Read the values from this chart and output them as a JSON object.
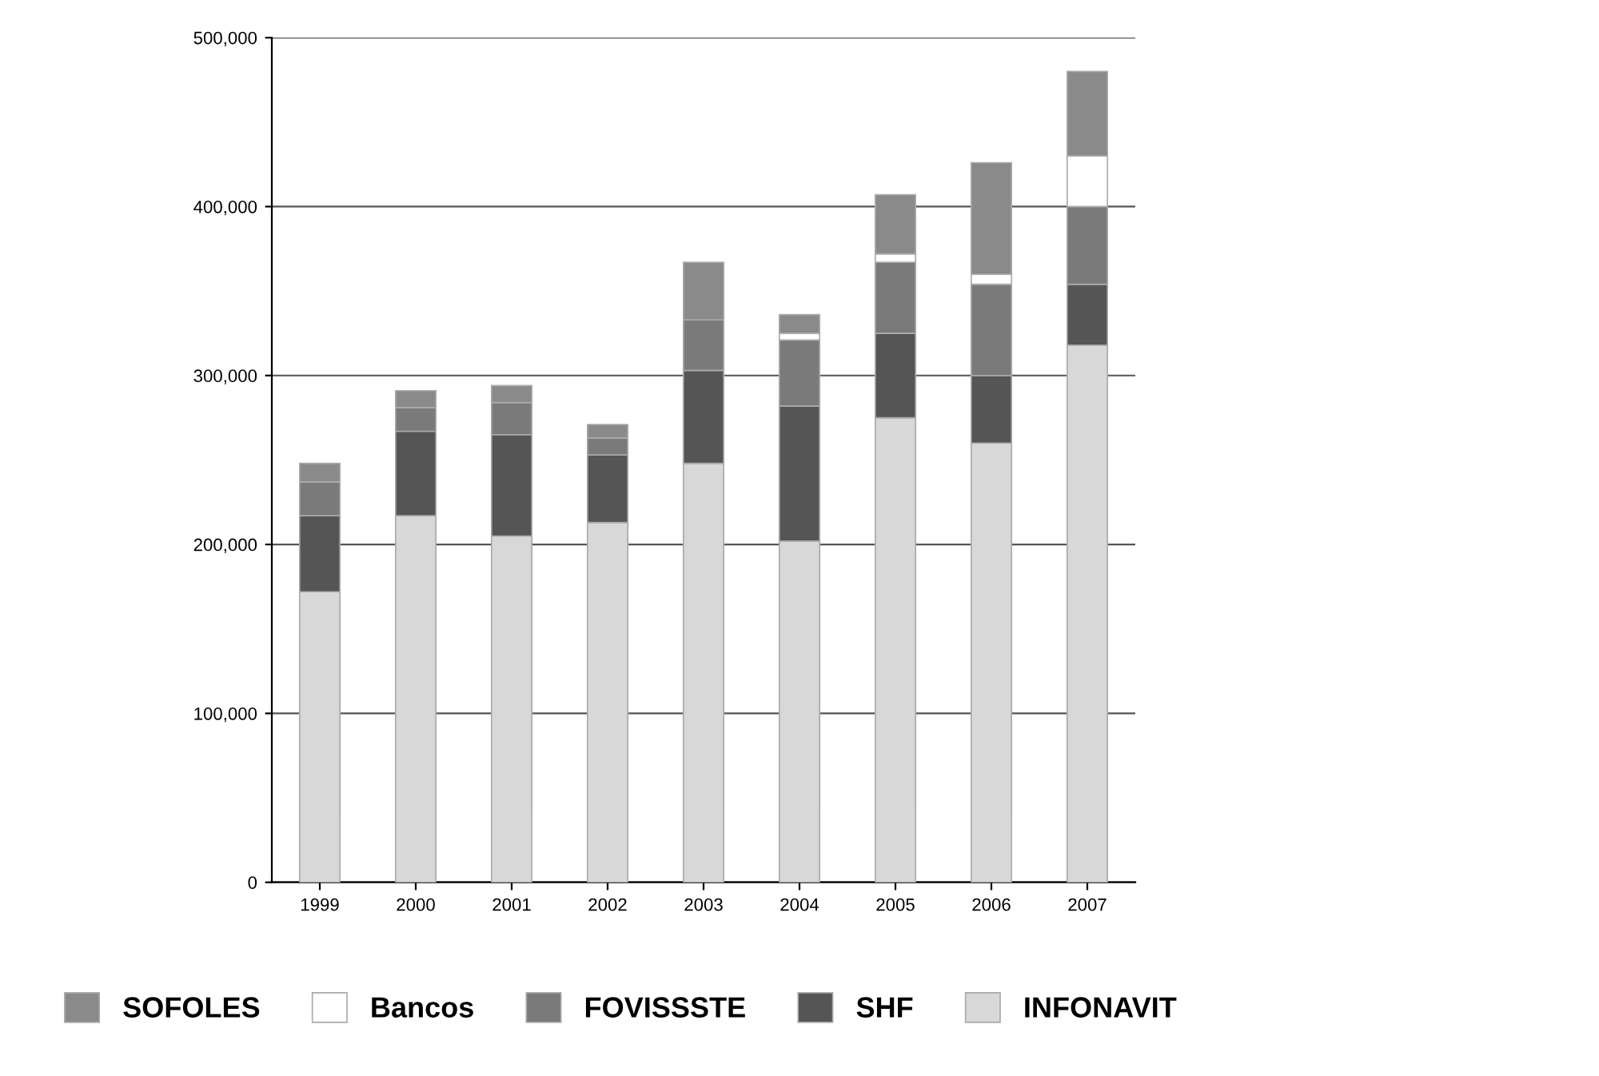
{
  "chart_data": {
    "type": "bar",
    "stacked": true,
    "categories": [
      "1999",
      "2000",
      "2001",
      "2002",
      "2003",
      "2004",
      "2005",
      "2006",
      "2007"
    ],
    "series": [
      {
        "name": "INFONAVIT",
        "color": "#d8d8d8",
        "values": [
          172000,
          217000,
          205000,
          213000,
          248000,
          202000,
          275000,
          260000,
          318000
        ]
      },
      {
        "name": "SHF",
        "color": "#555555",
        "values": [
          45000,
          50000,
          60000,
          40000,
          55000,
          80000,
          50000,
          40000,
          36000
        ]
      },
      {
        "name": "FOVISSSTE",
        "color": "#7a7a7a",
        "values": [
          20000,
          14000,
          19000,
          10000,
          30000,
          39000,
          42000,
          54000,
          46000
        ]
      },
      {
        "name": "Bancos",
        "color": "#ffffff",
        "values": [
          null,
          null,
          null,
          null,
          null,
          4000,
          5000,
          6000,
          30000
        ]
      },
      {
        "name": "SOFOLES",
        "color": "#8a8a8a",
        "values": [
          11000,
          10000,
          10000,
          8000,
          34000,
          11000,
          35000,
          66000,
          50000
        ]
      }
    ],
    "ylim": [
      0,
      500000
    ],
    "yticks": [
      {
        "value": 0,
        "label": "0"
      },
      {
        "value": 100000,
        "label": "100,000"
      },
      {
        "value": 200000,
        "label": "200,000"
      },
      {
        "value": 300000,
        "label": "300,000"
      },
      {
        "value": 400000,
        "label": "400,000"
      },
      {
        "value": 500000,
        "label": "500,000"
      }
    ],
    "grid": "y",
    "legend": "bottom"
  }
}
